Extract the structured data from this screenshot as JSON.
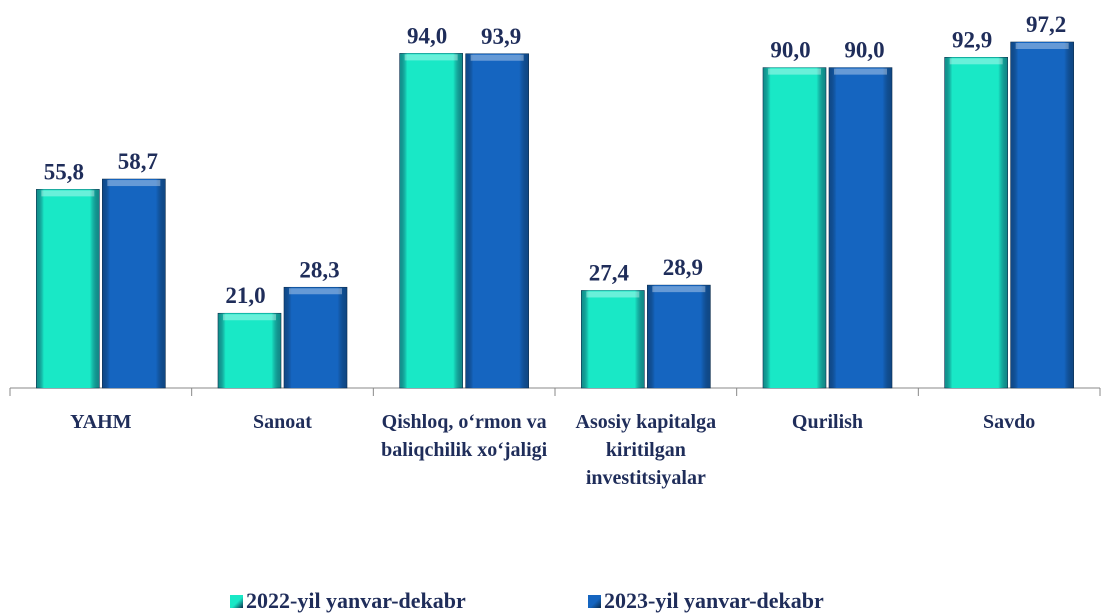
{
  "chart_data": {
    "type": "bar",
    "categories": [
      "YAHM",
      "Sanoat",
      "Qishloq, o‘rmon va baliqchilik xo‘jaligi",
      "Asosiy kapitalga kiritilgan investitsiyalar",
      "Qurilish",
      "Savdo"
    ],
    "series": [
      {
        "name": "2022-yil yanvar-dekabr",
        "color": "#19e8c6",
        "values": [
          55.8,
          21.0,
          94.0,
          27.4,
          90.0,
          92.9
        ],
        "value_labels": [
          "55,8",
          "21,0",
          "94,0",
          "27,4",
          "90,0",
          "92,9"
        ]
      },
      {
        "name": "2023-yil yanvar-dekabr",
        "color": "#1565c0",
        "values": [
          58.7,
          28.3,
          93.9,
          28.9,
          90.0,
          97.2
        ],
        "value_labels": [
          "58,7",
          "28,3",
          "93,9",
          "28,9",
          "90,0",
          "97,2"
        ]
      }
    ],
    "ylim": [
      0,
      109
    ],
    "legend": "bottom"
  }
}
